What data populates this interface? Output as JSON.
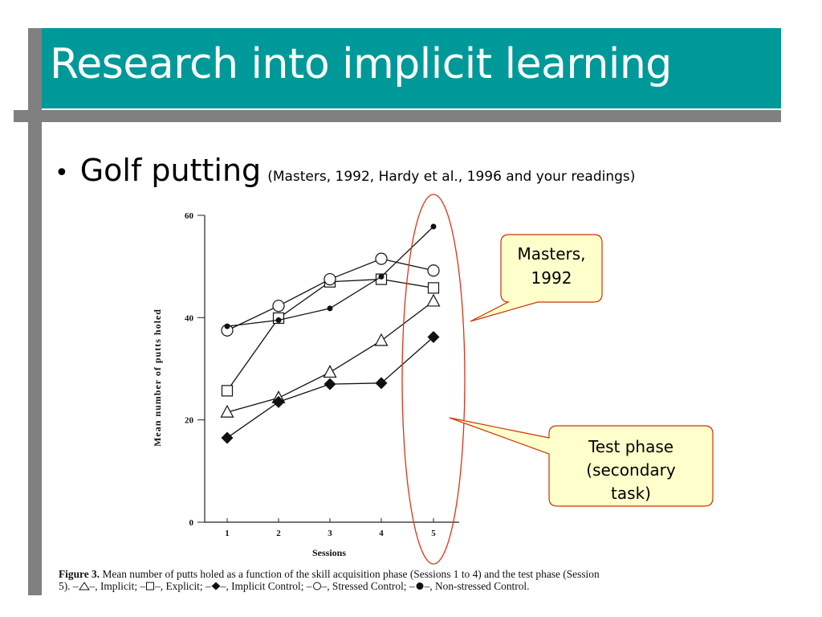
{
  "slide": {
    "title": "Research into implicit learning",
    "bullet_main": "Golf putting",
    "bullet_sub": "(Masters, 1992, Hardy et al., 1996 and your readings)",
    "colors": {
      "title_band": "#009999",
      "gray_bar": "#808080",
      "callout_fill": "#ffffcc",
      "callout_border": "#cc3300"
    }
  },
  "callouts": {
    "masters": [
      "Masters,",
      "1992"
    ],
    "test_phase": [
      "Test phase",
      "(secondary",
      "task)"
    ]
  },
  "caption": {
    "label": "Figure 3.",
    "text_parts": [
      "Mean number of putts holed as a function of the skill acquisition phase (Sessions 1 to 4) and the test phase (Session 5). –",
      "–, Implicit; –",
      "–, Explicit; –",
      "–, Implicit Control; –",
      "–, Stressed Control; –",
      "–, Non-stressed Control."
    ]
  },
  "chart_data": {
    "type": "line",
    "ylabel": "Mean number of putts holed",
    "xlabel": "Sessions",
    "ylim": [
      0,
      60
    ],
    "yticks": [
      0,
      20,
      40,
      60
    ],
    "x": [
      1,
      2,
      3,
      4,
      5
    ],
    "series": [
      {
        "name": "Implicit",
        "marker": "triangle-open",
        "values": [
          21.5,
          24.3,
          29.3,
          35.5,
          43.2
        ]
      },
      {
        "name": "Explicit",
        "marker": "square-open",
        "values": [
          25.7,
          39.9,
          47.0,
          47.5,
          45.8
        ]
      },
      {
        "name": "Implicit Control",
        "marker": "diamond-filled",
        "values": [
          16.5,
          23.5,
          27.0,
          27.2,
          36.2
        ]
      },
      {
        "name": "Stressed Control",
        "marker": "circle-open",
        "values": [
          37.5,
          42.3,
          47.5,
          51.5,
          49.2
        ]
      },
      {
        "name": "Non-stressed Control",
        "marker": "dot-filled",
        "values": [
          38.3,
          39.5,
          41.8,
          48.0,
          57.8
        ]
      }
    ]
  }
}
